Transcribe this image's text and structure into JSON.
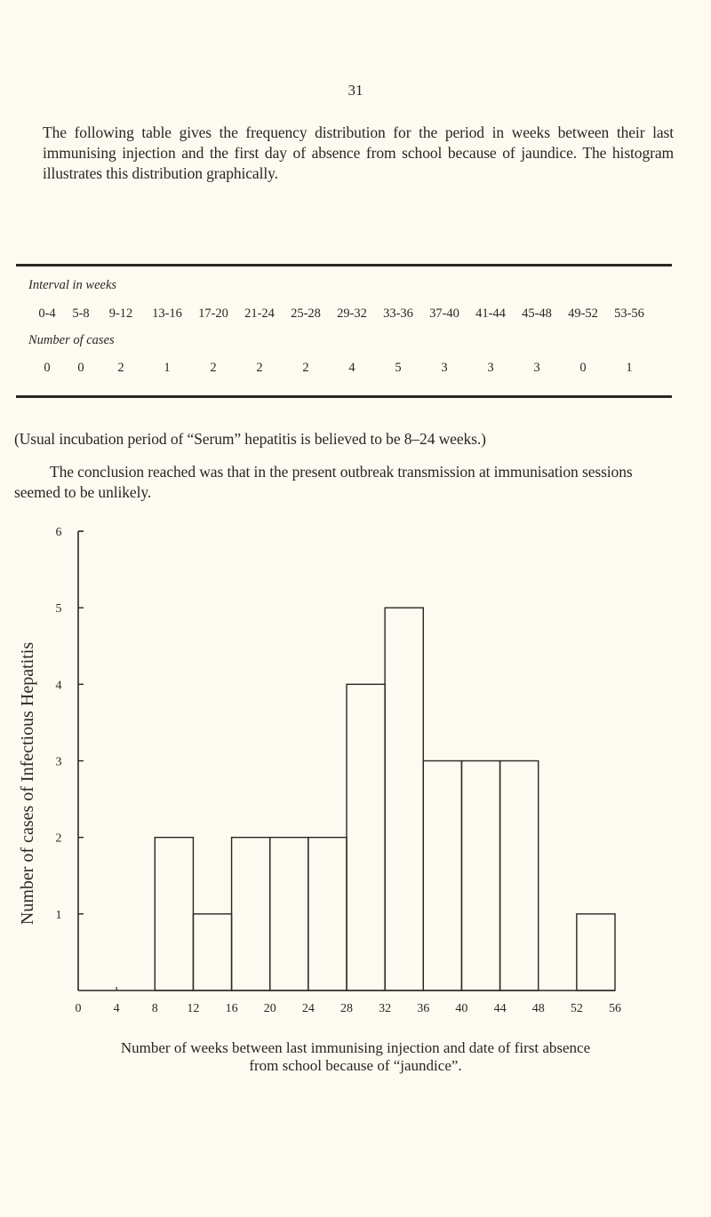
{
  "page_number": "31",
  "intro": "The following table gives the frequency distribution for the period in weeks between their last immunising injection and the first day of absence from school because of jaundice. The histogram illustrates this distribution graphically.",
  "table": {
    "interval_label": "Interval in weeks",
    "cases_label": "Number of cases",
    "intervals": [
      "0-4",
      "5-8",
      "9-12",
      "13-16",
      "17-20",
      "21-24",
      "25-28",
      "29-32",
      "33-36",
      "37-40",
      "41-44",
      "45-48",
      "49-52",
      "53-56"
    ],
    "cases": [
      "0",
      "0",
      "2",
      "1",
      "2",
      "2",
      "2",
      "4",
      "5",
      "3",
      "3",
      "3",
      "0",
      "1"
    ]
  },
  "note": "(Usual incubation period of “Serum” hepatitis is believed to be 8–24 weeks.)",
  "conclusion": "The conclusion reached was that in the present outbreak transmission at immunisation sessions seemed to be unlikely.",
  "caption_line1": "Number of weeks between last immunising injection and date of first absence",
  "caption_line2": "from school because of “jaundice”.",
  "chart_data": {
    "type": "bar",
    "title": "",
    "xlabel": "Number of weeks between last immunising injection and date of first absence from school because of “jaundice”.",
    "ylabel": "Number of cases of Infectious Hepatitis",
    "categories": [
      "0-4",
      "4-8",
      "8-12",
      "12-16",
      "16-20",
      "20-24",
      "24-28",
      "28-32",
      "32-36",
      "36-40",
      "40-44",
      "44-48",
      "48-52",
      "52-56"
    ],
    "values": [
      0,
      0,
      2,
      1,
      2,
      2,
      2,
      4,
      5,
      3,
      3,
      3,
      0,
      1
    ],
    "bin_edges": [
      0,
      4,
      8,
      12,
      16,
      20,
      24,
      28,
      32,
      36,
      40,
      44,
      48,
      52,
      56
    ],
    "x_ticks": [
      "0",
      "4",
      "8",
      "12",
      "16",
      "20",
      "24",
      "28",
      "32",
      "36",
      "40",
      "44",
      "48",
      "52",
      "56"
    ],
    "y_ticks": [
      "1",
      "2",
      "3",
      "4",
      "5",
      "6"
    ],
    "xlim": [
      0,
      56
    ],
    "ylim": [
      0,
      6
    ],
    "grid": false,
    "legend": null
  }
}
